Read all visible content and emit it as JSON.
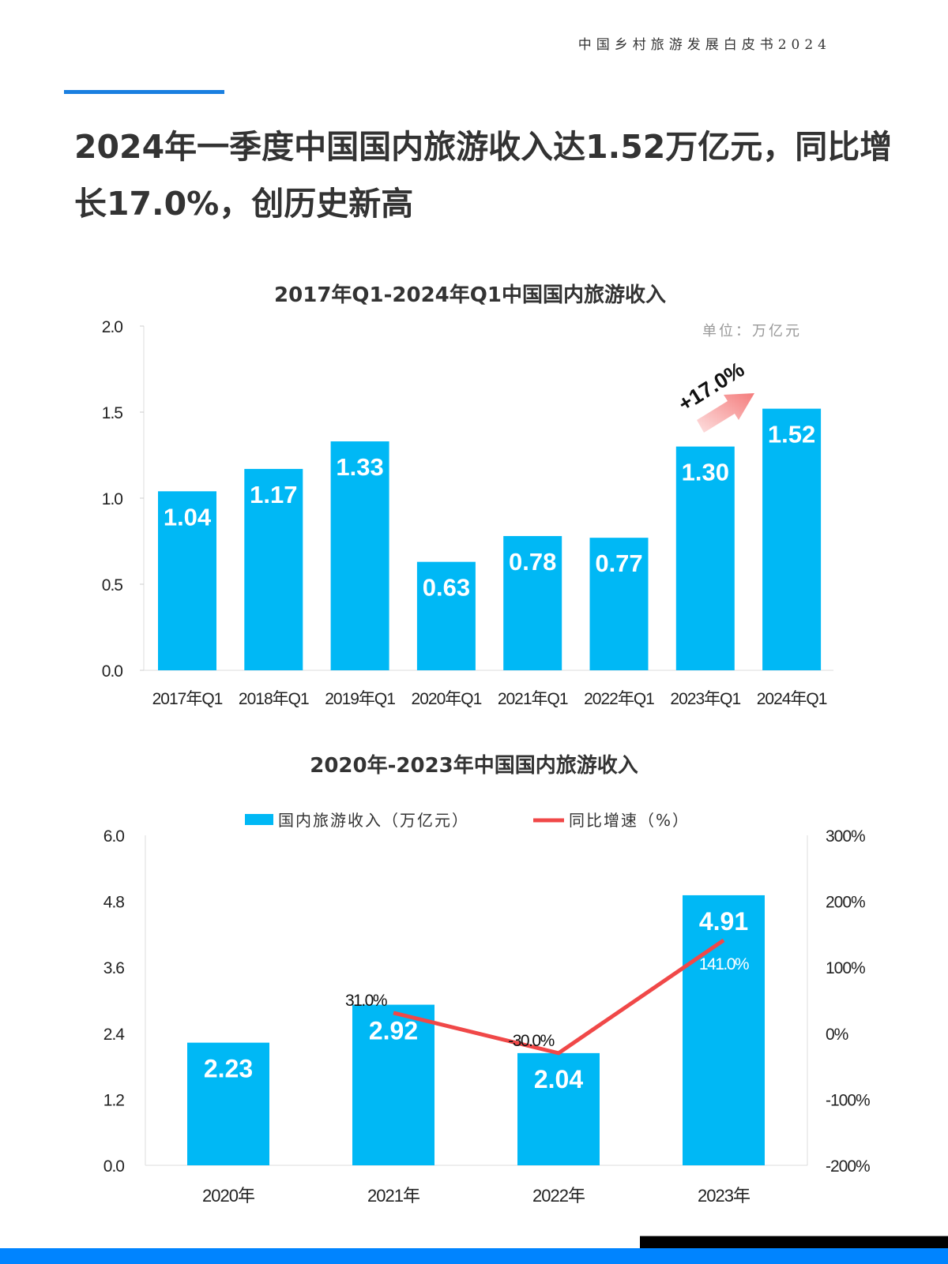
{
  "header": {
    "doc_title": "中国乡村旅游发展白皮书2024"
  },
  "headline": "2024年一季度中国国内旅游收入达1.52万亿元，同比增长17.0%，创历史新高",
  "colors": {
    "bar": "#00b8f5",
    "line": "#f04848",
    "accent": "#1a7fe0",
    "footer": "#0084ff"
  },
  "chart_data": [
    {
      "type": "bar",
      "title": "2017年Q1-2024年Q1中国国内旅游收入",
      "unit_note": "单位：万亿元",
      "categories": [
        "2017年Q1",
        "2018年Q1",
        "2019年Q1",
        "2020年Q1",
        "2021年Q1",
        "2022年Q1",
        "2023年Q1",
        "2024年Q1"
      ],
      "values": [
        1.04,
        1.17,
        1.33,
        0.63,
        0.78,
        0.77,
        1.3,
        1.52
      ],
      "data_labels": [
        "1.04",
        "1.17",
        "1.33",
        "0.63",
        "0.78",
        "0.77",
        "1.30",
        "1.52"
      ],
      "ylim": [
        0,
        2.0
      ],
      "yticks": [
        "0.0",
        "0.5",
        "1.0",
        "1.5",
        "2.0"
      ],
      "annotation": "+17.0%",
      "grid": false
    },
    {
      "type": "bar+line",
      "title": "2020年-2023年中国国内旅游收入",
      "categories": [
        "2020年",
        "2021年",
        "2022年",
        "2023年"
      ],
      "series": [
        {
          "name": "国内旅游收入（万亿元）",
          "type": "bar",
          "values": [
            2.23,
            2.92,
            2.04,
            4.91
          ],
          "labels": [
            "2.23",
            "2.92",
            "2.04",
            "4.91"
          ]
        },
        {
          "name": "同比增速（%）",
          "type": "line",
          "axis": "right",
          "values": [
            null,
            31.0,
            -30.0,
            141.0
          ],
          "labels": [
            "",
            "31.0%",
            "-30.0%",
            "141.0%"
          ]
        }
      ],
      "ylim": [
        0,
        6.0
      ],
      "yticks": [
        "0.0",
        "1.2",
        "2.4",
        "3.6",
        "4.8",
        "6.0"
      ],
      "y2lim": [
        -200,
        300
      ],
      "y2ticks": [
        "-200%",
        "-100%",
        "0%",
        "100%",
        "200%",
        "300%"
      ],
      "legend": "top",
      "grid": false
    }
  ]
}
